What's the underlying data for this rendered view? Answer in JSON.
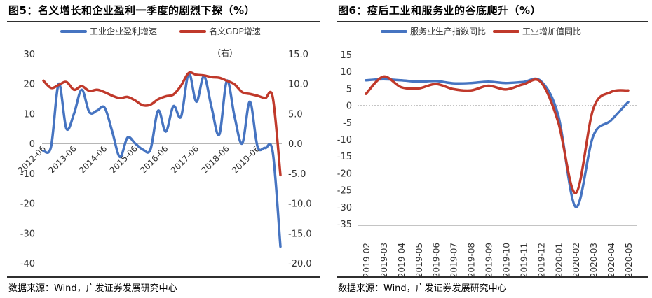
{
  "charts": [
    {
      "title": "图5：名义增长和企业盈利一季度的剧烈下探（%）",
      "source": "数据来源：Wind，广发证券发展研究中心",
      "right_axis_note": "（右）"
    },
    {
      "title": "图6：疫后工业和服务业的谷底爬升（%）",
      "source": "数据来源：Wind，广发证券发展研究中心"
    }
  ],
  "colors": {
    "blue": "#4674c1",
    "red": "#c0392b"
  },
  "chart_data": [
    {
      "type": "line",
      "title": "名义增长和企业盈利一季度的剧烈下探（%）",
      "legend_position": "top",
      "grid": false,
      "x_tick_labels": [
        "2012-06",
        "2013-06",
        "2014-06",
        "2015-06",
        "2016-06",
        "2017-06",
        "2018-06",
        "2019-06"
      ],
      "x_tick_index": [
        0,
        4,
        8,
        12,
        16,
        20,
        24,
        28
      ],
      "ylim_left": [
        -40,
        30
      ],
      "yticks_left": [
        30,
        20,
        10,
        0,
        -10,
        -20,
        -30,
        -40
      ],
      "ylim_right": [
        -20,
        15
      ],
      "yticks_right": [
        "15.0",
        "10.0",
        "5.0",
        "0.0",
        "-5.0",
        "-10.0",
        "-15.0",
        "-20.0"
      ],
      "series": [
        {
          "name": "工业企业盈利增速",
          "axis": "left",
          "color": "#4674c1",
          "values": [
            -2.5,
            -1.0,
            20.0,
            5.0,
            10.0,
            18.0,
            10.5,
            11.0,
            12.0,
            4.0,
            -4.5,
            2.0,
            0.0,
            -2.0,
            -2.0,
            11.0,
            4.0,
            12.5,
            9.0,
            23.5,
            14.0,
            22.5,
            12.0,
            3.0,
            21.0,
            9.0,
            0.0,
            14.0,
            -1.0,
            -1.5,
            -3.0,
            -34.5
          ]
        },
        {
          "name": "名义GDP增速",
          "axis": "right",
          "color": "#c0392b",
          "values": [
            10.5,
            9.3,
            9.8,
            10.3,
            9.0,
            9.6,
            8.8,
            9.0,
            8.6,
            8.0,
            7.6,
            7.8,
            7.2,
            6.4,
            6.5,
            7.4,
            7.9,
            8.2,
            9.7,
            11.8,
            11.5,
            11.4,
            11.1,
            11.0,
            10.5,
            9.9,
            8.6,
            8.3,
            8.0,
            7.6,
            7.7,
            -5.3
          ]
        }
      ]
    },
    {
      "type": "line",
      "title": "疫后工业和服务业的谷底爬升（%）",
      "legend_position": "top",
      "grid": false,
      "categories": [
        "2019-02",
        "2019-03",
        "2019-04",
        "2019-05",
        "2019-06",
        "2019-07",
        "2019-08",
        "2019-09",
        "2019-10",
        "2019-11",
        "2019-12",
        "2020-01",
        "2020-02",
        "2020-03",
        "2020-04",
        "2020-05"
      ],
      "ylim": [
        -35,
        15
      ],
      "yticks": [
        15,
        10,
        5,
        0,
        -5,
        -10,
        -15,
        -20,
        -25,
        -30,
        -35
      ],
      "series": [
        {
          "name": "服务业生产指数同比",
          "color": "#4674c1",
          "values": [
            7.4,
            7.7,
            7.4,
            7.0,
            7.2,
            6.5,
            6.6,
            7.0,
            6.6,
            6.9,
            7.2,
            -3.0,
            -30.0,
            -9.1,
            -4.5,
            1.0
          ]
        },
        {
          "name": "工业增加值同比",
          "color": "#c0392b",
          "values": [
            3.4,
            8.5,
            5.4,
            5.0,
            6.3,
            4.8,
            4.4,
            5.8,
            4.7,
            6.2,
            6.9,
            -5.0,
            -25.9,
            -1.1,
            3.9,
            4.4
          ]
        }
      ]
    }
  ]
}
